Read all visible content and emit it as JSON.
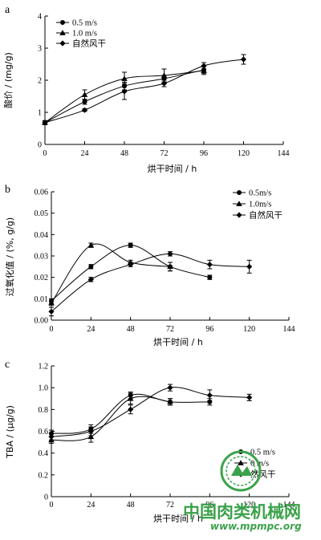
{
  "chart_data": [
    {
      "type": "line",
      "panel_label": "a",
      "xlabel": "烘干时间 / h",
      "ylabel": "酸价 / (mg/g)",
      "xlim": [
        0,
        144
      ],
      "ylim": [
        0,
        4
      ],
      "xticks": [
        0,
        24,
        48,
        72,
        96,
        120,
        144
      ],
      "yticks": [
        0,
        1,
        2,
        3,
        4
      ],
      "legend_position": "top-left",
      "series": [
        {
          "name": "0.5 m/s",
          "marker": "circle",
          "x": [
            0,
            24,
            48,
            72,
            96
          ],
          "y": [
            0.68,
            1.33,
            1.82,
            2.05,
            2.32
          ],
          "err": [
            0.06,
            0.08,
            0.12,
            0.1,
            0.1
          ]
        },
        {
          "name": "1.0 m/s",
          "marker": "triangle",
          "x": [
            0,
            24,
            48,
            72,
            96
          ],
          "y": [
            0.68,
            1.55,
            2.05,
            2.15,
            2.3
          ],
          "err": [
            0.06,
            0.15,
            0.2,
            0.2,
            0.12
          ]
        },
        {
          "name": "自然风干",
          "marker": "diamond",
          "x": [
            0,
            24,
            48,
            72,
            96,
            120
          ],
          "y": [
            0.68,
            1.07,
            1.65,
            1.9,
            2.45,
            2.65
          ],
          "err": [
            0.06,
            0.04,
            0.25,
            0.1,
            0.1,
            0.15
          ]
        }
      ]
    },
    {
      "type": "line",
      "panel_label": "b",
      "xlabel": "烘干时间 / h",
      "ylabel": "过氧化值 / (%, g/g)",
      "xlim": [
        0,
        144
      ],
      "ylim": [
        0,
        0.06
      ],
      "xticks": [
        0,
        24,
        48,
        72,
        96,
        120,
        144
      ],
      "yticks": [
        "0.00",
        "0.01",
        "0.02",
        "0.03",
        "0.04",
        "0.05",
        "0.06"
      ],
      "legend_position": "top-right",
      "series": [
        {
          "name": "0.5m/s",
          "marker": "circle",
          "x": [
            0,
            24,
            48,
            72,
            96
          ],
          "y": [
            0.009,
            0.025,
            0.035,
            0.025,
            0.02
          ],
          "err": [
            0.001,
            0.001,
            0.001,
            0.002,
            0.001
          ]
        },
        {
          "name": "1.0m/s",
          "marker": "triangle",
          "x": [
            0,
            24,
            48,
            72
          ],
          "y": [
            0.008,
            0.035,
            0.027,
            0.025
          ],
          "err": [
            0.001,
            0.001,
            0.001,
            0.002
          ]
        },
        {
          "name": "自然风干",
          "marker": "diamond",
          "x": [
            0,
            24,
            48,
            72,
            96,
            120
          ],
          "y": [
            0.004,
            0.019,
            0.026,
            0.031,
            0.026,
            0.025
          ],
          "err": [
            0.002,
            0.001,
            0.001,
            0.001,
            0.002,
            0.003
          ]
        }
      ]
    },
    {
      "type": "line",
      "panel_label": "c",
      "xlabel": "烘干时间 / h",
      "ylabel": "TBA / (μg/g)",
      "xlim": [
        0,
        144
      ],
      "ylim": [
        0,
        1.2
      ],
      "xticks": [
        0,
        24,
        48,
        72,
        96,
        120,
        144
      ],
      "yticks": [
        "0",
        "0.2",
        "0.4",
        "0.6",
        "0.8",
        "1.0",
        "1.2"
      ],
      "legend_position": "bottom-right",
      "legend_visible_labels": [
        "0.5 m/s",
        "0 m/s",
        "然风干"
      ],
      "series": [
        {
          "name": "0.5 m/s",
          "marker": "circle",
          "x": [
            0,
            24,
            48,
            72,
            96
          ],
          "y": [
            0.58,
            0.62,
            0.93,
            0.87,
            0.87
          ],
          "err": [
            0.03,
            0.04,
            0.03,
            0.03,
            0.03
          ]
        },
        {
          "name": "1.0 m/s",
          "marker": "triangle",
          "x": [
            0,
            24,
            48,
            72
          ],
          "y": [
            0.52,
            0.55,
            0.9,
            0.87
          ],
          "err": [
            0.03,
            0.05,
            0.05,
            0.03
          ]
        },
        {
          "name": "自然风干",
          "marker": "diamond",
          "x": [
            0,
            24,
            48,
            72,
            96,
            120
          ],
          "y": [
            0.55,
            0.6,
            0.8,
            1.0,
            0.93,
            0.91
          ],
          "err": [
            0.03,
            0.04,
            0.04,
            0.03,
            0.05,
            0.03
          ]
        }
      ]
    }
  ],
  "watermark": {
    "site_name": "中国肉类机械网",
    "url": "www.mpmpc.org",
    "logo_color": "#3aa24a"
  }
}
